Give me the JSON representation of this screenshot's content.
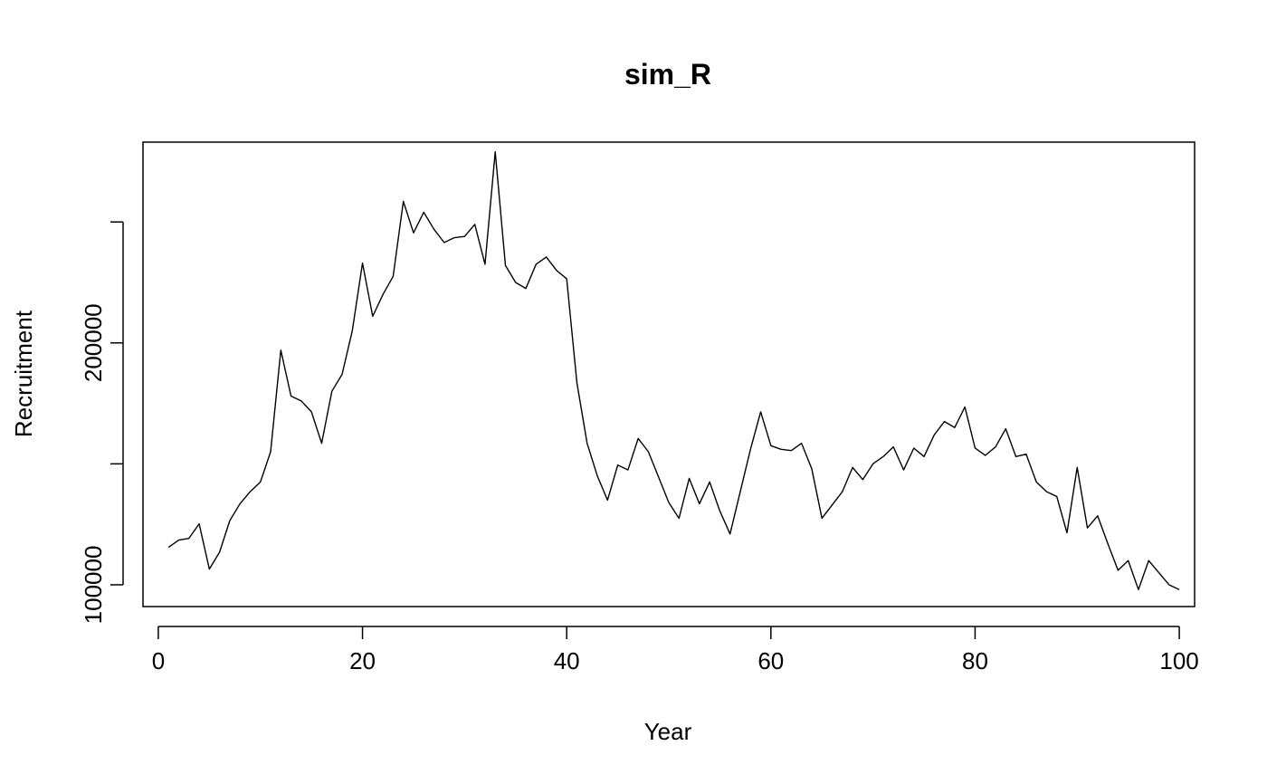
{
  "chart_data": {
    "type": "line",
    "title": "sim_R",
    "xlabel": "Year",
    "ylabel": "Recruitment",
    "xlim": [
      -1.5,
      101.5
    ],
    "ylim": [
      91000,
      283000
    ],
    "x_ticks": [
      0,
      20,
      40,
      60,
      80,
      100
    ],
    "y_ticks": [
      100000,
      150000,
      200000,
      250000
    ],
    "y_tick_labels": [
      "100000",
      "",
      "200000",
      ""
    ],
    "grid": false,
    "legend": "none",
    "colors": {
      "line": "#000000",
      "axes": "#000000",
      "background": "#ffffff"
    },
    "series": [
      {
        "x": [
          1,
          2,
          3,
          4,
          5,
          6,
          7,
          8,
          9,
          10,
          11,
          12,
          13,
          14,
          15,
          16,
          17,
          18,
          19,
          20,
          21,
          22,
          23,
          24,
          25,
          26,
          27,
          28,
          29,
          30,
          31,
          32,
          33,
          34,
          35,
          36,
          37,
          38,
          39,
          40,
          41,
          42,
          43,
          44,
          45,
          46,
          47,
          48,
          49,
          50,
          51,
          52,
          53,
          54,
          55,
          56,
          57,
          58,
          59,
          60,
          61,
          62,
          63,
          64,
          65,
          66,
          67,
          68,
          69,
          70,
          71,
          72,
          73,
          74,
          75,
          76,
          77,
          78,
          79,
          80,
          81,
          82,
          83,
          84,
          85,
          86,
          87,
          88,
          89,
          90,
          91,
          92,
          93,
          94,
          95,
          96,
          97,
          98,
          99,
          100
        ],
        "values": [
          115500,
          118500,
          119200,
          125200,
          106500,
          113500,
          126500,
          133500,
          138500,
          142500,
          155000,
          197000,
          178000,
          176000,
          171500,
          158500,
          180000,
          187000,
          205000,
          233000,
          211000,
          220000,
          227500,
          258500,
          245500,
          254000,
          247000,
          241500,
          243500,
          244000,
          249000,
          232500,
          279000,
          232000,
          225000,
          222500,
          232500,
          235500,
          230000,
          226500,
          183500,
          158500,
          145000,
          135000,
          149500,
          147500,
          160500,
          155000,
          144500,
          134000,
          127500,
          144000,
          133500,
          142500,
          130500,
          121000,
          138500,
          156000,
          171500,
          157500,
          156000,
          155500,
          158500,
          148000,
          127500,
          133000,
          138500,
          148500,
          143500,
          150000,
          153000,
          157000,
          147500,
          156500,
          153000,
          162000,
          167500,
          165000,
          173500,
          156500,
          153500,
          157000,
          164500,
          153000,
          154000,
          142500,
          138500,
          136500,
          121500,
          148500,
          123500,
          128500,
          117000,
          106000,
          110000,
          98000,
          110000,
          105000,
          100000,
          98000
        ]
      }
    ]
  }
}
